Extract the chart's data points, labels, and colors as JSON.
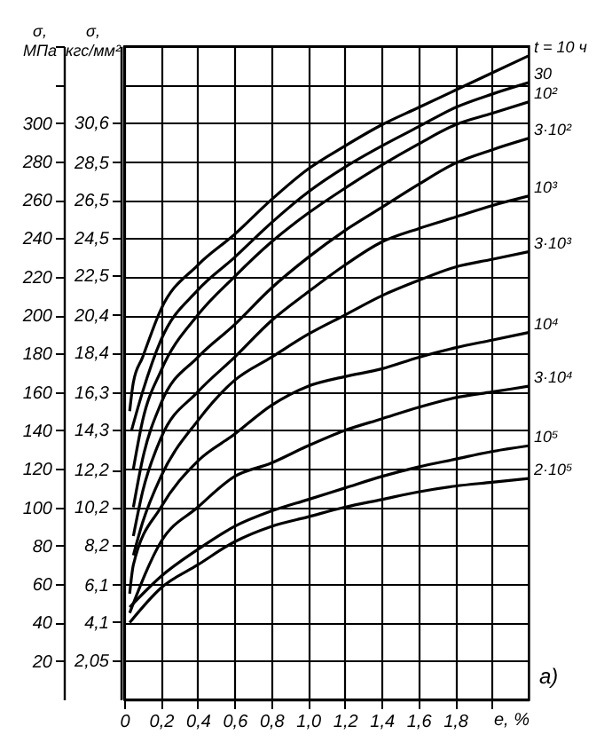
{
  "chart_data": {
    "type": "line",
    "xlabel": "e, %",
    "ylabel": "σ, МПа",
    "y2label": "σ, кгс/мм²",
    "annotations": [
      "а)"
    ],
    "xlim": [
      0,
      2.2
    ],
    "xticks": [
      0,
      {
        "value": 0.2,
        "label": "0,2"
      },
      {
        "value": 0.4,
        "label": "0,4"
      },
      {
        "value": 0.6,
        "label": "0,6"
      },
      {
        "value": 0.8,
        "label": "0,8"
      },
      {
        "value": 1.0,
        "label": "1,0"
      },
      {
        "value": 1.2,
        "label": "1,2"
      },
      {
        "value": 1.4,
        "label": "1,4"
      },
      {
        "value": 1.6,
        "label": "1,6"
      },
      {
        "value": 1.8,
        "label": "1,8"
      },
      {
        "value": 2.0,
        "label": null
      }
    ],
    "ylim": [
      0,
      340
    ],
    "yticks": [
      20,
      40,
      60,
      80,
      100,
      120,
      140,
      160,
      180,
      200,
      220,
      240,
      260,
      280,
      300,
      {
        "value": 320,
        "label": null
      },
      {
        "value": 340,
        "label": null
      }
    ],
    "y2lim": [
      0,
      34.67
    ],
    "y2ticks": [
      {
        "value": 2.05,
        "label": "2,05"
      },
      {
        "value": 4.1,
        "label": "4,1"
      },
      {
        "value": 6.1,
        "label": "6,1"
      },
      {
        "value": 8.2,
        "label": "8,2"
      },
      {
        "value": 10.2,
        "label": "10,2"
      },
      {
        "value": 12.2,
        "label": "12,2"
      },
      {
        "value": 14.3,
        "label": "14,3"
      },
      {
        "value": 16.3,
        "label": "16,3"
      },
      {
        "value": 18.4,
        "label": "18,4"
      },
      {
        "value": 20.4,
        "label": "20,4"
      },
      {
        "value": 22.5,
        "label": "22,5"
      },
      {
        "value": 24.5,
        "label": "24,5"
      },
      {
        "value": 26.5,
        "label": "26,5"
      },
      {
        "value": 28.5,
        "label": "28,5"
      },
      {
        "value": 30.6,
        "label": "30,6"
      }
    ],
    "grid": true,
    "series": [
      {
        "name": "t = 10 ч",
        "color": "#000000",
        "x": [
          0.03,
          0.05,
          0.1,
          0.2,
          0.4,
          0.6,
          0.8,
          1.0,
          1.2,
          1.4,
          1.6,
          1.8,
          2.0,
          2.2
        ],
        "values": [
          150,
          165,
          178,
          203,
          226,
          242,
          260,
          276,
          288,
          299,
          308,
          317,
          326,
          335
        ]
      },
      {
        "name": "30",
        "color": "#000000",
        "x": [
          0.04,
          0.1,
          0.2,
          0.4,
          0.6,
          0.8,
          1.0,
          1.2,
          1.4,
          1.6,
          1.8,
          2.0,
          2.2
        ],
        "values": [
          140,
          160,
          187,
          213,
          230,
          248,
          264,
          277,
          288,
          298,
          308,
          315,
          321
        ]
      },
      {
        "name": "10²",
        "color": "#000000",
        "x": [
          0.05,
          0.1,
          0.2,
          0.4,
          0.6,
          0.8,
          1.0,
          1.2,
          1.4,
          1.6,
          1.8,
          2.0,
          2.2
        ],
        "values": [
          120,
          145,
          171,
          200,
          220,
          238,
          253,
          266,
          278,
          289,
          299,
          305,
          311
        ]
      },
      {
        "name": "3·10²",
        "color": "#000000",
        "x": [
          0.05,
          0.1,
          0.2,
          0.4,
          0.6,
          0.8,
          1.0,
          1.2,
          1.4,
          1.6,
          1.8,
          2.0,
          2.2
        ],
        "values": [
          100,
          125,
          154,
          178,
          195,
          214,
          230,
          244,
          256,
          268,
          279,
          286,
          292
        ]
      },
      {
        "name": "10³",
        "color": "#000000",
        "x": [
          0.05,
          0.1,
          0.2,
          0.4,
          0.6,
          0.8,
          1.0,
          1.2,
          1.4,
          1.6,
          1.8,
          2.0,
          2.2
        ],
        "values": [
          85,
          108,
          136,
          160,
          178,
          197,
          212,
          226,
          238,
          245,
          251,
          257,
          262
        ]
      },
      {
        "name": "3·10³",
        "color": "#000000",
        "x": [
          0.05,
          0.1,
          0.2,
          0.4,
          0.6,
          0.8,
          1.0,
          1.2,
          1.4,
          1.6,
          1.8,
          2.0,
          2.2
        ],
        "values": [
          75,
          92,
          116,
          145,
          166,
          178,
          190,
          200,
          210,
          218,
          225,
          229,
          233
        ]
      },
      {
        "name": "10⁴",
        "color": "#000000",
        "x": [
          0.03,
          0.05,
          0.2,
          0.4,
          0.6,
          0.8,
          1.0,
          1.2,
          1.4,
          1.6,
          1.8,
          2.0,
          2.2
        ],
        "values": [
          55,
          70,
          100,
          124,
          138,
          153,
          163,
          168,
          172,
          178,
          183,
          187,
          191
        ]
      },
      {
        "name": "3·10⁴",
        "color": "#000000",
        "x": [
          0.03,
          0.2,
          0.4,
          0.6,
          0.8,
          1.0,
          1.2,
          1.4,
          1.6,
          1.8,
          2.0,
          2.2
        ],
        "values": [
          45,
          82,
          100,
          116,
          123,
          132,
          140,
          146,
          152,
          157,
          160,
          163
        ]
      },
      {
        "name": "10⁵",
        "color": "#000000",
        "x": [
          0.03,
          0.2,
          0.4,
          0.6,
          0.8,
          1.0,
          1.2,
          1.4,
          1.6,
          1.8,
          2.0,
          2.2
        ],
        "values": [
          48,
          64,
          78,
          90,
          98,
          104,
          110,
          116,
          121,
          125,
          129,
          132
        ]
      },
      {
        "name": "2·10⁵",
        "color": "#000000",
        "x": [
          0.03,
          0.2,
          0.4,
          0.6,
          0.8,
          1.0,
          1.2,
          1.4,
          1.6,
          1.8,
          2.0,
          2.2
        ],
        "values": [
          40,
          58,
          70,
          82,
          90,
          95,
          100,
          104,
          108,
          111,
          113,
          115
        ]
      }
    ]
  }
}
